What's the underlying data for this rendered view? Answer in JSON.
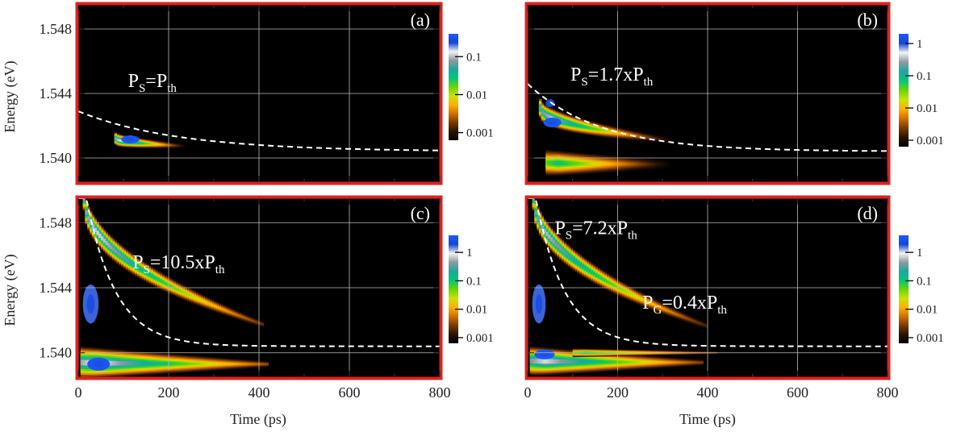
{
  "figure": {
    "xlabel": "Time (ps)",
    "ylabel": "Energy (eV)",
    "colormap": [
      "#000000",
      "#2a1400",
      "#7a3a00",
      "#d07000",
      "#ffb000",
      "#c8e400",
      "#6cd400",
      "#00c878",
      "#1aa8a0",
      "#8c9aa0",
      "#f2f2f2",
      "#1446d2",
      "#1a5cff"
    ],
    "frame_color": "#e02020",
    "grid_color": "#bbbbbb",
    "fit_color": "#ffffff"
  },
  "chart_data": [
    {
      "type": "heatmap",
      "panel_label": "(a)",
      "xlim": [
        0,
        800
      ],
      "ylim": [
        1.5385,
        1.5495
      ],
      "xticks": [
        "0",
        "200",
        "400",
        "600",
        "800"
      ],
      "yticks": [
        "1.540",
        "1.544",
        "1.548"
      ],
      "xtick_values": [
        0,
        200,
        400,
        600,
        800
      ],
      "ytick_values": [
        1.54,
        1.544,
        1.548
      ],
      "annotations": [
        {
          "base": "P",
          "sub": "S",
          "mid": "=P",
          "sub2": "th",
          "tail": "",
          "at": [
            110,
            1.5444
          ]
        }
      ],
      "colorbar": {
        "labels": [
          "0.1",
          "0.01",
          "0.001"
        ],
        "values": [
          0.1,
          0.01,
          0.001
        ],
        "range_log": [
          -3.2,
          -0.4
        ]
      },
      "fit_curve": {
        "E_inf": 1.5404,
        "amplitude": 0.0025,
        "tau": 220,
        "t_start": 0
      },
      "emission": [
        {
          "t": [
            80,
            260
          ],
          "E0": 1.5412,
          "E1": 1.5407,
          "w0": 0.00045,
          "w1": 0.0001,
          "peak": -0.6,
          "decay": 55
        }
      ],
      "hot_spots": [
        {
          "t": [
            95,
            135
          ],
          "E": 1.54115,
          "w": 0.00025,
          "level": 1
        }
      ]
    },
    {
      "type": "heatmap",
      "panel_label": "(b)",
      "xlim": [
        0,
        800
      ],
      "ylim": [
        1.5385,
        1.5495
      ],
      "xticks": [
        "0",
        "200",
        "400",
        "600",
        "800"
      ],
      "yticks": [
        "1.540",
        "1.544",
        "1.548"
      ],
      "xtick_values": [
        0,
        200,
        400,
        600,
        800
      ],
      "ytick_values": [
        1.54,
        1.544,
        1.548
      ],
      "annotations": [
        {
          "base": "P",
          "sub": "S",
          "mid": "=1.7xP",
          "sub2": "th",
          "tail": "",
          "at": [
            95,
            1.5448
          ]
        }
      ],
      "colorbar": {
        "labels": [
          "1",
          "0.1",
          "0.01",
          "0.001"
        ],
        "values": [
          1,
          0.1,
          0.01,
          0.001
        ],
        "range_log": [
          -3.2,
          0.3
        ]
      },
      "fit_curve": {
        "E_inf": 1.5404,
        "amplitude": 0.0042,
        "tau": 160,
        "t_start": 0
      },
      "emission": [
        {
          "t": [
            25,
            340
          ],
          "E0": 1.5431,
          "E1": 1.541,
          "w0": 0.0007,
          "w1": 0.00015,
          "peak": -0.2,
          "decay": 90
        },
        {
          "t": [
            40,
            360
          ],
          "E0": 1.5397,
          "E1": 1.5396,
          "w0": 0.0009,
          "w1": 0.0002,
          "peak": -0.9,
          "decay": 110
        }
      ],
      "hot_spots": [
        {
          "t": [
            35,
            75
          ],
          "E": 1.5422,
          "w": 0.0003,
          "level": 1
        },
        {
          "t": [
            40,
            60
          ],
          "E": 1.5434,
          "w": 0.00025,
          "level": 0.8
        }
      ]
    },
    {
      "type": "heatmap",
      "panel_label": "(c)",
      "xlim": [
        0,
        800
      ],
      "ylim": [
        1.5385,
        1.5495
      ],
      "xticks": [
        "0",
        "200",
        "400",
        "600",
        "800"
      ],
      "yticks": [
        "1.540",
        "1.544",
        "1.548"
      ],
      "xtick_values": [
        0,
        200,
        400,
        600,
        800
      ],
      "ytick_values": [
        1.54,
        1.544,
        1.548
      ],
      "annotations": [
        {
          "base": "P",
          "sub": "S",
          "mid": "=10.5xP",
          "sub2": "th",
          "tail": "",
          "at": [
            120,
            1.5452
          ]
        }
      ],
      "colorbar": {
        "labels": [
          "1",
          "0.1",
          "0.01",
          "0.001"
        ],
        "values": [
          1,
          0.1,
          0.01,
          0.001
        ],
        "range_log": [
          -3.2,
          0.6
        ]
      },
      "fit_curve": {
        "E_inf": 1.5404,
        "amplitude": 0.012,
        "tau": 65,
        "t_start": 0
      },
      "emission": [
        {
          "t": [
            10,
            410
          ],
          "E0": 1.5495,
          "E1": 1.5417,
          "w0": 0.0009,
          "w1": 0.0002,
          "peak": 0.1,
          "decay": 130
        },
        {
          "t": [
            5,
            420
          ],
          "E0": 1.5394,
          "E1": 1.5393,
          "w0": 0.0011,
          "w1": 0.0002,
          "peak": 0.2,
          "decay": 140
        }
      ],
      "hot_spots": [
        {
          "t": [
            20,
            70
          ],
          "E": 1.5393,
          "w": 0.0004,
          "level": 1
        },
        {
          "t": [
            10,
            45
          ],
          "E": 1.543,
          "w": 0.0012,
          "level": 0.7
        }
      ]
    },
    {
      "type": "heatmap",
      "panel_label": "(d)",
      "xlim": [
        0,
        800
      ],
      "ylim": [
        1.5385,
        1.5495
      ],
      "xticks": [
        "0",
        "200",
        "400",
        "600",
        "800"
      ],
      "yticks": [
        "1.540",
        "1.544",
        "1.548"
      ],
      "xtick_values": [
        0,
        200,
        400,
        600,
        800
      ],
      "ytick_values": [
        1.54,
        1.544,
        1.548
      ],
      "annotations": [
        {
          "base": "P",
          "sub": "S",
          "mid": "=7.2xP",
          "sub2": "th",
          "tail": "",
          "at": [
            60,
            1.5473
          ]
        },
        {
          "base": "P",
          "sub": "G",
          "mid": "=0.4xP",
          "sub2": "th",
          "tail": "",
          "at": [
            255,
            1.5427
          ]
        }
      ],
      "colorbar": {
        "labels": [
          "1",
          "0.1",
          "0.01",
          "0.001"
        ],
        "values": [
          1,
          0.1,
          0.01,
          0.001
        ],
        "range_log": [
          -3.2,
          0.6
        ]
      },
      "fit_curve": {
        "E_inf": 1.5404,
        "amplitude": 0.012,
        "tau": 65,
        "t_start": 0
      },
      "emission": [
        {
          "t": [
            10,
            400
          ],
          "E0": 1.5495,
          "E1": 1.5416,
          "w0": 0.0009,
          "w1": 0.0002,
          "peak": 0.0,
          "decay": 125
        },
        {
          "t": [
            5,
            390
          ],
          "E0": 1.5395,
          "E1": 1.5394,
          "w0": 0.001,
          "w1": 0.0002,
          "peak": 0.1,
          "decay": 130
        },
        {
          "t": [
            100,
            420
          ],
          "E0": 1.54,
          "E1": 1.54,
          "w0": 0.0003,
          "w1": 0.0001,
          "peak": -0.8,
          "decay": 160
        }
      ],
      "hot_spots": [
        {
          "t": [
            15,
            60
          ],
          "E": 1.5399,
          "w": 0.0003,
          "level": 1
        },
        {
          "t": [
            10,
            40
          ],
          "E": 1.543,
          "w": 0.0012,
          "level": 0.7
        }
      ]
    }
  ]
}
